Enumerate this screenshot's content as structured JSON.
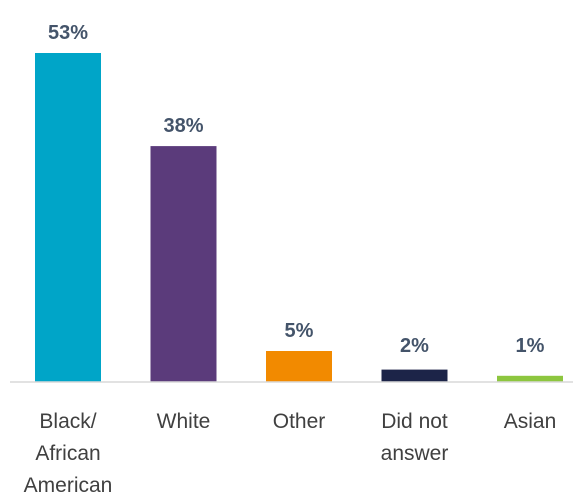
{
  "chart_data": {
    "type": "bar",
    "categories": [
      [
        "Black/",
        "African",
        "American"
      ],
      [
        "White"
      ],
      [
        "Other"
      ],
      [
        "Did not",
        "answer"
      ],
      [
        "Asian"
      ]
    ],
    "values": [
      53,
      38,
      5,
      2,
      1
    ],
    "value_labels": [
      "53%",
      "38%",
      "5%",
      "2%",
      "1%"
    ],
    "colors": [
      "#00a5c8",
      "#5b3b7b",
      "#f28a00",
      "#1c2448",
      "#8dc63f"
    ],
    "ylim": [
      0,
      53
    ],
    "grid": false,
    "legend": "none",
    "title": "",
    "xlabel": "",
    "ylabel": ""
  }
}
